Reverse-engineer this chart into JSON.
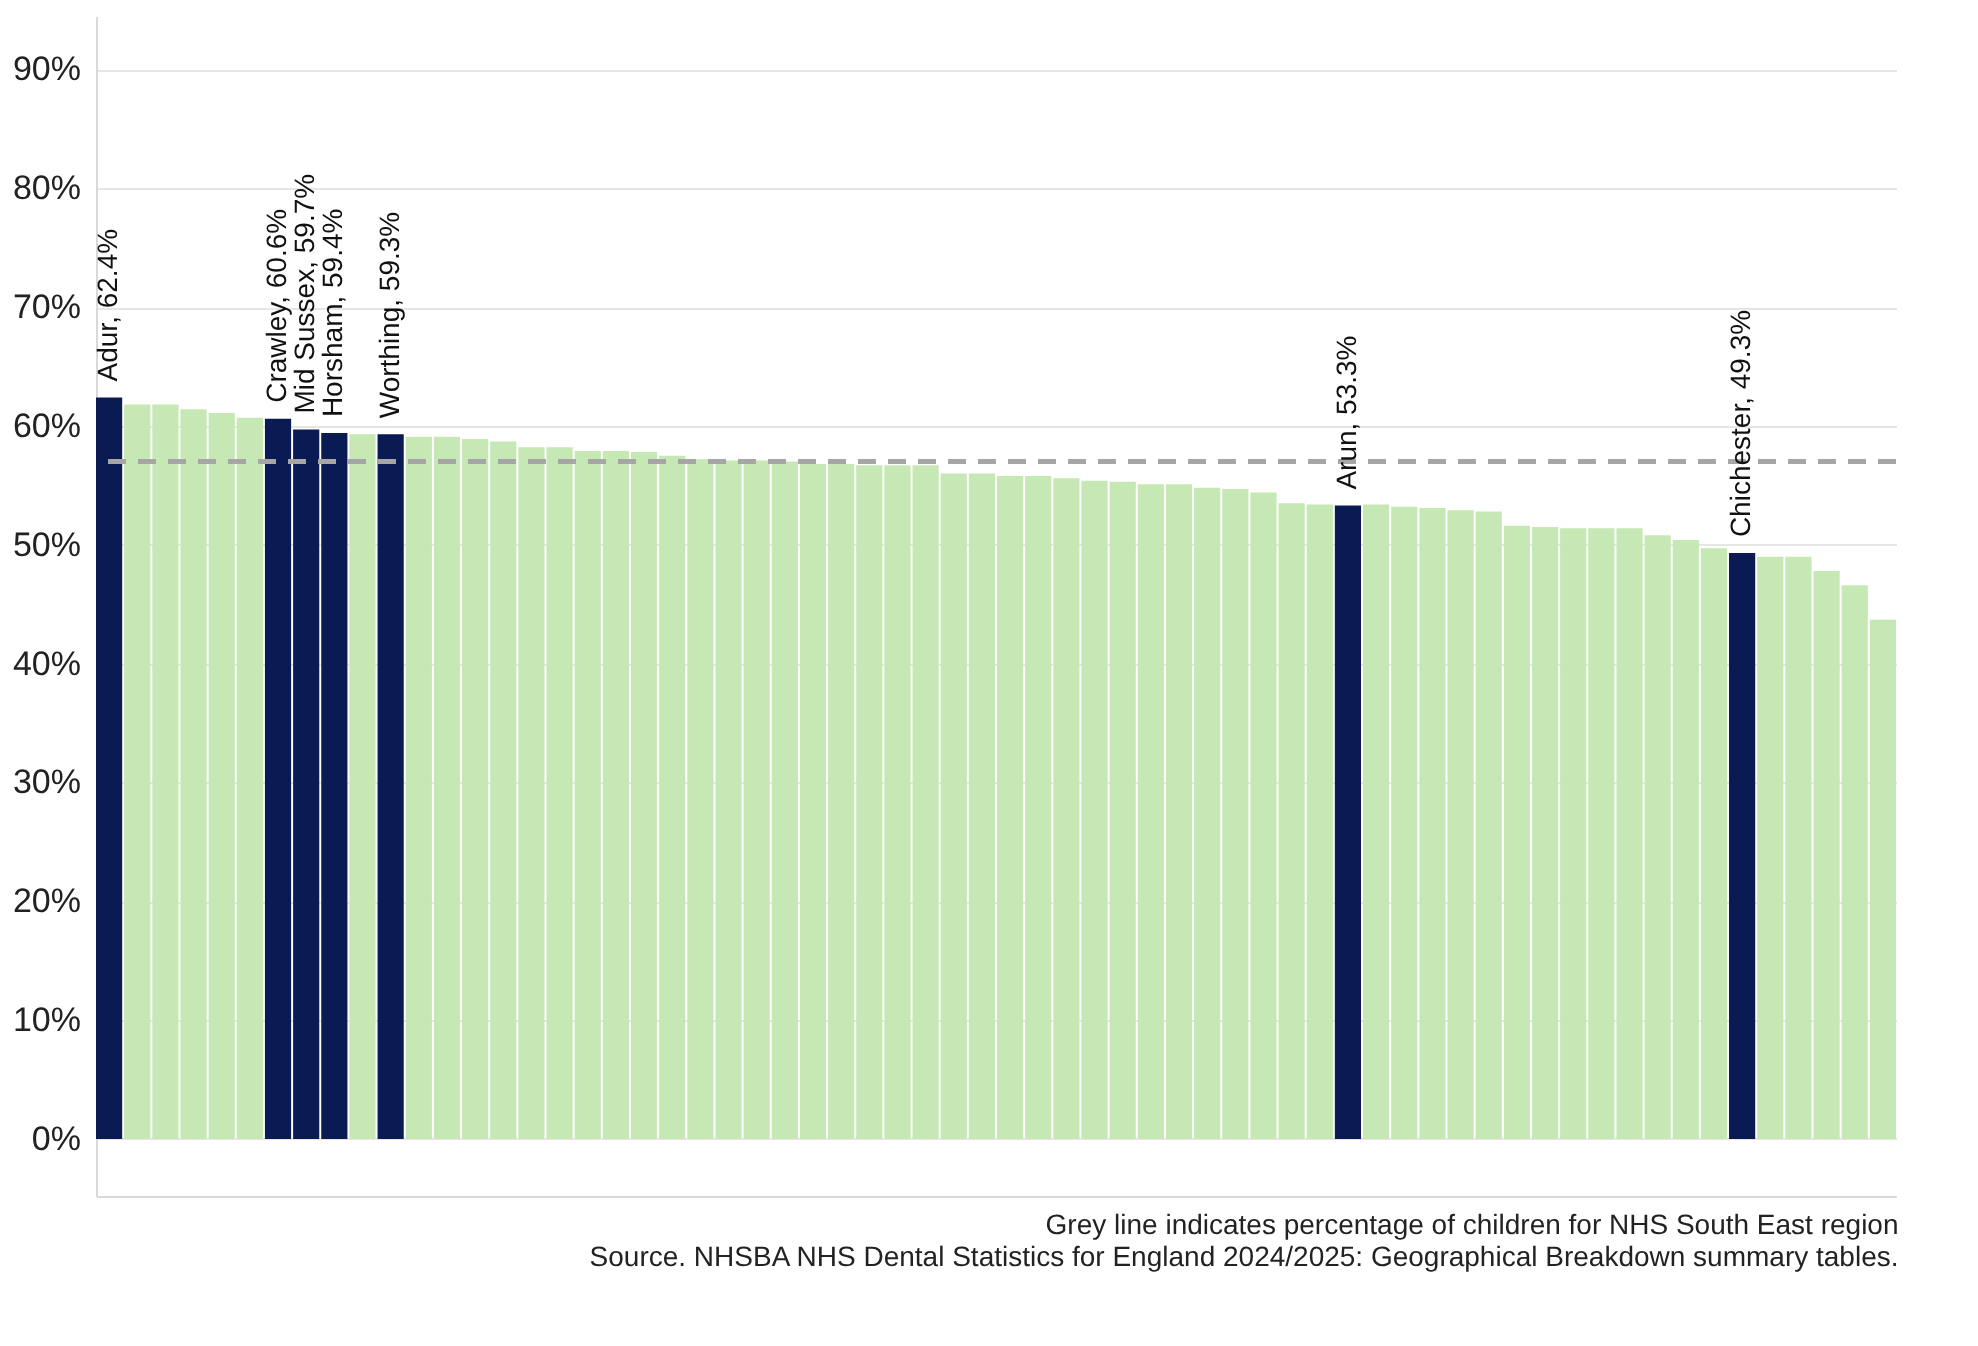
{
  "chart_data": {
    "type": "bar",
    "categories": [
      null,
      null,
      null,
      null,
      null,
      null,
      null,
      null,
      null,
      null,
      null,
      null,
      null,
      null,
      null,
      null,
      null,
      null,
      null,
      null,
      null,
      null,
      null,
      null,
      null,
      null,
      null,
      null,
      null,
      null,
      null,
      null,
      null,
      null,
      null,
      null,
      null,
      null,
      null,
      null,
      null,
      null,
      null,
      null,
      null,
      null,
      null,
      null,
      null,
      null,
      null,
      null,
      null,
      null,
      null,
      null,
      null,
      null,
      null,
      null,
      null,
      null,
      null,
      null
    ],
    "values": [
      62.4,
      61.8,
      61.8,
      61.4,
      61.1,
      60.7,
      60.6,
      59.7,
      59.4,
      59.3,
      59.3,
      59.1,
      59.1,
      58.9,
      58.7,
      58.2,
      58.2,
      57.9,
      57.9,
      57.8,
      57.5,
      57.2,
      57.1,
      57.1,
      57.0,
      56.8,
      56.8,
      56.7,
      56.7,
      56.7,
      56.0,
      56.0,
      55.8,
      55.8,
      55.6,
      55.4,
      55.3,
      55.1,
      55.1,
      54.8,
      54.7,
      54.4,
      53.5,
      53.4,
      53.3,
      53.4,
      53.2,
      53.1,
      52.9,
      52.8,
      51.6,
      51.5,
      51.4,
      51.4,
      51.4,
      50.8,
      50.4,
      49.7,
      49.3,
      49.0,
      49.0,
      47.8,
      46.6,
      43.7
    ],
    "colors": [
      "#0a1a52",
      "#c6e8b4",
      "#c6e8b4",
      "#c6e8b4",
      "#c6e8b4",
      "#c6e8b4",
      "#0a1a52",
      "#0a1a52",
      "#0a1a52",
      "#c6e8b4",
      "#0a1a52",
      "#c6e8b4",
      "#c6e8b4",
      "#c6e8b4",
      "#c6e8b4",
      "#c6e8b4",
      "#c6e8b4",
      "#c6e8b4",
      "#c6e8b4",
      "#c6e8b4",
      "#c6e8b4",
      "#c6e8b4",
      "#c6e8b4",
      "#c6e8b4",
      "#c6e8b4",
      "#c6e8b4",
      "#c6e8b4",
      "#c6e8b4",
      "#c6e8b4",
      "#c6e8b4",
      "#c6e8b4",
      "#c6e8b4",
      "#c6e8b4",
      "#c6e8b4",
      "#c6e8b4",
      "#c6e8b4",
      "#c6e8b4",
      "#c6e8b4",
      "#c6e8b4",
      "#c6e8b4",
      "#c6e8b4",
      "#c6e8b4",
      "#c6e8b4",
      "#c6e8b4",
      "#0a1a52",
      "#c6e8b4",
      "#c6e8b4",
      "#c6e8b4",
      "#c6e8b4",
      "#c6e8b4",
      "#c6e8b4",
      "#c6e8b4",
      "#c6e8b4",
      "#c6e8b4",
      "#c6e8b4",
      "#c6e8b4",
      "#c6e8b4",
      "#c6e8b4",
      "#0a1a52",
      "#c6e8b4",
      "#c6e8b4",
      "#c6e8b4",
      "#c6e8b4",
      "#c6e8b4"
    ],
    "value_labels": [
      "Adur, 62.4%",
      null,
      null,
      null,
      null,
      null,
      "Crawley, 60.6%",
      "Mid Sussex, 59.7%",
      "Horsham, 59.4%",
      null,
      "Worthing, 59.3%",
      null,
      null,
      null,
      null,
      null,
      null,
      null,
      null,
      null,
      null,
      null,
      null,
      null,
      null,
      null,
      null,
      null,
      null,
      null,
      null,
      null,
      null,
      null,
      null,
      null,
      null,
      null,
      null,
      null,
      null,
      null,
      null,
      null,
      "Arun, 53.3%",
      null,
      null,
      null,
      null,
      null,
      null,
      null,
      null,
      null,
      null,
      null,
      null,
      null,
      "Chichester, 49.3%",
      null,
      null,
      null,
      null,
      null
    ],
    "ylim": [
      -4.8,
      94.5
    ],
    "yticks": [
      {
        "value": 0,
        "label": "0%"
      },
      {
        "value": 10,
        "label": "10%"
      },
      {
        "value": 20,
        "label": "20%"
      },
      {
        "value": 30,
        "label": "30%"
      },
      {
        "value": 40,
        "label": "40%"
      },
      {
        "value": 50,
        "label": "50%"
      },
      {
        "value": 60,
        "label": "60%"
      },
      {
        "value": 70,
        "label": "70%"
      },
      {
        "value": 80,
        "label": "80%"
      },
      {
        "value": 90,
        "label": "90%"
      }
    ],
    "grid": "y",
    "tick_labels": "y",
    "ref_lines": [
      {
        "axis": "y",
        "value": 57.0,
        "label": null,
        "color": "#a6a6a6",
        "line_style": "dashed"
      }
    ],
    "annotations": [
      "Grey line indicates percentage of children for NHS South East region",
      "Source. NHSBA NHS Dental Statistics for England 2024/2025: Geographical Breakdown summary tables."
    ]
  }
}
